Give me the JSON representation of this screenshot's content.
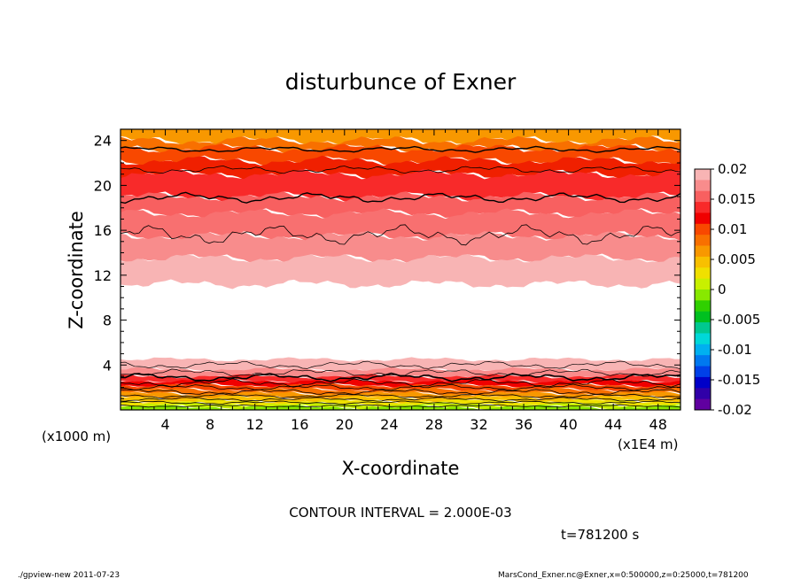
{
  "chart_data": {
    "type": "contour",
    "title": "disturbunce of Exner",
    "xlabel": "X-coordinate",
    "ylabel": "Z-coordinate",
    "x_unit": "(x1E4 m)",
    "y_unit": "(x1000 m)",
    "xlim": [
      0,
      50
    ],
    "ylim": [
      0,
      25
    ],
    "x_ticks": [
      4,
      8,
      12,
      16,
      20,
      24,
      28,
      32,
      36,
      40,
      44,
      48
    ],
    "y_ticks": [
      4,
      8,
      12,
      16,
      20,
      24
    ],
    "colorbar": {
      "labels": [
        "0.02",
        "0.015",
        "0.01",
        "0.005",
        "0",
        "-0.005",
        "-0.01",
        "-0.015",
        "-0.02"
      ],
      "levels": [
        0.02,
        0.015,
        0.01,
        0.005,
        0,
        -0.005,
        -0.01,
        -0.015,
        -0.02
      ],
      "colors": [
        "#f8b4b4",
        "#f88c8c",
        "#f86060",
        "#f82a2a",
        "#f00000",
        "#f84800",
        "#f87000",
        "#f89800",
        "#f8c000",
        "#f0e000",
        "#c8f000",
        "#88e800",
        "#30d000",
        "#00c020",
        "#00c890",
        "#00d8d8",
        "#00b0f0",
        "#0078f0",
        "#0040e8",
        "#0000c8",
        "#3000a8",
        "#6000a0"
      ]
    },
    "contour_interval": "CONTOUR INTERVAL = 2.000E-03",
    "time_label": "t=781200 s",
    "bands": [
      {
        "z_top": 25.0,
        "z_bot": 24.0,
        "color": "#f89800"
      },
      {
        "z_top": 24.0,
        "z_bot": 23.3,
        "color": "#f87000"
      },
      {
        "z_top": 23.3,
        "z_bot": 22.2,
        "color": "#f84800"
      },
      {
        "z_top": 22.2,
        "z_bot": 21.0,
        "color": "#f02000"
      },
      {
        "z_top": 21.0,
        "z_bot": 19.0,
        "color": "#f82a2a"
      },
      {
        "z_top": 19.0,
        "z_bot": 17.5,
        "color": "#f86060"
      },
      {
        "z_top": 17.5,
        "z_bot": 15.5,
        "color": "#f87070"
      },
      {
        "z_top": 15.5,
        "z_bot": 13.5,
        "color": "#f88c8c"
      },
      {
        "z_top": 13.5,
        "z_bot": 11.2,
        "color": "#f8b4b4"
      },
      {
        "z_top": 4.5,
        "z_bot": 3.6,
        "color": "#f8b4b4"
      },
      {
        "z_top": 3.6,
        "z_bot": 3.0,
        "color": "#f88c8c"
      },
      {
        "z_top": 3.0,
        "z_bot": 2.6,
        "color": "#f82a2a"
      },
      {
        "z_top": 2.6,
        "z_bot": 2.2,
        "color": "#f00000"
      },
      {
        "z_top": 2.2,
        "z_bot": 1.8,
        "color": "#f84800"
      },
      {
        "z_top": 1.8,
        "z_bot": 1.45,
        "color": "#f87000"
      },
      {
        "z_top": 1.45,
        "z_bot": 1.1,
        "color": "#f89800"
      },
      {
        "z_top": 1.1,
        "z_bot": 0.8,
        "color": "#f8c000"
      },
      {
        "z_top": 0.8,
        "z_bot": 0.5,
        "color": "#f0e000"
      },
      {
        "z_top": 0.5,
        "z_bot": 0.25,
        "color": "#c8f000"
      },
      {
        "z_top": 0.25,
        "z_bot": 0.0,
        "color": "#88e800"
      }
    ],
    "contour_lines": [
      {
        "z": 23.2,
        "amp": 0.15,
        "width": 1.4
      },
      {
        "z": 21.4,
        "amp": 0.2,
        "width": 0.8
      },
      {
        "z": 18.9,
        "amp": 0.25,
        "width": 1.4
      },
      {
        "z": 15.6,
        "amp": 0.5,
        "width": 0.8
      },
      {
        "z": 4.0,
        "amp": 0.2,
        "width": 0.7
      },
      {
        "z": 3.3,
        "amp": 0.2,
        "width": 0.7
      },
      {
        "z": 2.9,
        "amp": 0.2,
        "width": 1.6
      },
      {
        "z": 2.4,
        "amp": 0.2,
        "width": 0.8
      },
      {
        "z": 2.0,
        "amp": 0.15,
        "width": 0.8
      },
      {
        "z": 1.6,
        "amp": 0.15,
        "width": 0.8
      },
      {
        "z": 1.25,
        "amp": 0.1,
        "width": 0.8
      },
      {
        "z": 0.95,
        "amp": 0.1,
        "width": 0.8
      },
      {
        "z": 0.65,
        "amp": 0.08,
        "width": 0.8
      },
      {
        "z": 0.35,
        "amp": 0.06,
        "width": 0.8
      }
    ]
  },
  "footer": {
    "left": "./gpview-new   2011-07-23",
    "right": "MarsCond_Exner.nc@Exner,x=0:500000,z=0:25000,t=781200"
  }
}
